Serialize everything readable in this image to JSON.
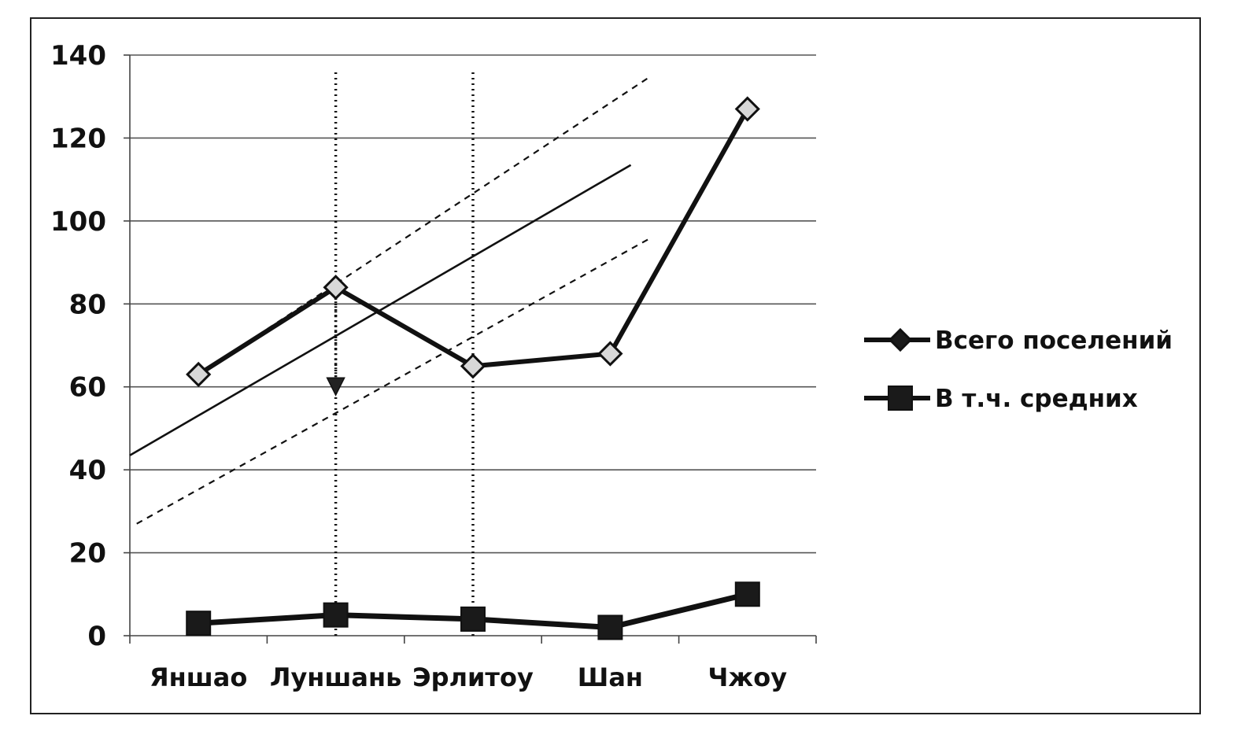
{
  "chart_data": {
    "type": "line",
    "categories": [
      "Яншао",
      "Луншань",
      "Эрлитоу",
      "Шан",
      "Чжоу"
    ],
    "series": [
      {
        "name": "Всего поселений",
        "marker": "diamond",
        "values": [
          63,
          84,
          65,
          68,
          127
        ]
      },
      {
        "name": "В т.ч. средних",
        "marker": "square",
        "values": [
          3,
          5,
          4,
          2,
          10
        ]
      }
    ],
    "ylim": [
      0,
      140
    ],
    "yticks": [
      0,
      20,
      40,
      60,
      80,
      100,
      120,
      140
    ],
    "grid": true,
    "legend_position": "right",
    "annotations": {
      "trend_lines": [
        {
          "style": "solid",
          "from": [
            -0.5,
            43.5
          ],
          "to": [
            3.15,
            113.5
          ]
        },
        {
          "style": "dashed",
          "from": [
            -0.45,
            27
          ],
          "to": [
            3.3,
            96
          ]
        },
        {
          "style": "dashed",
          "from": [
            0,
            63
          ],
          "to": [
            3.3,
            135
          ]
        }
      ],
      "vertical_dotted_lines": [
        {
          "x": 1,
          "y_from": 0,
          "y_to": 136
        },
        {
          "x": 2,
          "y_from": 0,
          "y_to": 136
        }
      ],
      "arrow": {
        "x": 1,
        "from": 84,
        "to": 58
      }
    },
    "colors": {
      "line": "#111111",
      "grid": "#555555"
    }
  }
}
